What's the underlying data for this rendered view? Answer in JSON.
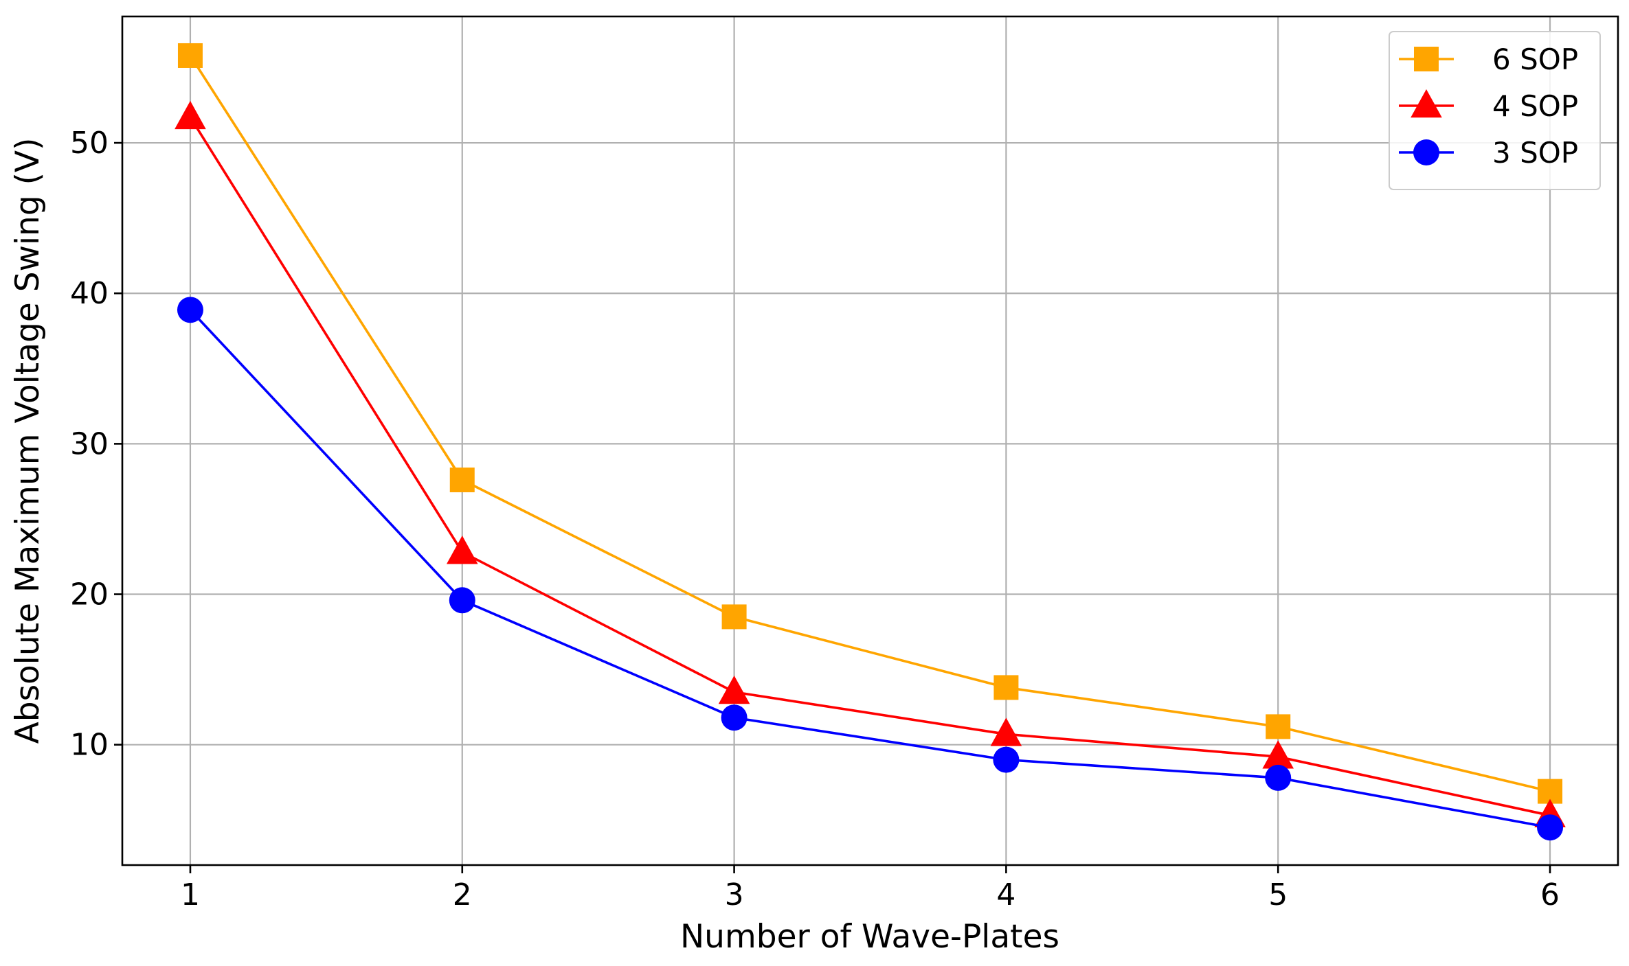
{
  "chart_data": {
    "type": "line",
    "title": "",
    "xlabel": "Number of Wave-Plates",
    "ylabel": "Absolute Maximum Voltage Swing (V)",
    "x": [
      1,
      2,
      3,
      4,
      5,
      6
    ],
    "x_tick_labels": [
      "1",
      "2",
      "3",
      "4",
      "5",
      "6"
    ],
    "y_ticks": [
      10,
      20,
      30,
      40,
      50
    ],
    "y_tick_labels": [
      "10",
      "20",
      "30",
      "40",
      "50"
    ],
    "xlim": [
      0.75,
      6.25
    ],
    "ylim": [
      2.0,
      58.4
    ],
    "grid": true,
    "legend_position": "top-right",
    "series": [
      {
        "name": "6 SOP",
        "color": "#FFA500",
        "marker": "square",
        "values": [
          55.8,
          27.6,
          18.5,
          13.8,
          11.2,
          6.9
        ]
      },
      {
        "name": "4 SOP",
        "color": "#FF0000",
        "marker": "triangle",
        "values": [
          51.7,
          22.8,
          13.5,
          10.7,
          9.2,
          5.3
        ]
      },
      {
        "name": "3 SOP",
        "color": "#0000FF",
        "marker": "circle",
        "values": [
          38.9,
          19.6,
          11.8,
          9.0,
          7.8,
          4.5
        ]
      }
    ]
  }
}
